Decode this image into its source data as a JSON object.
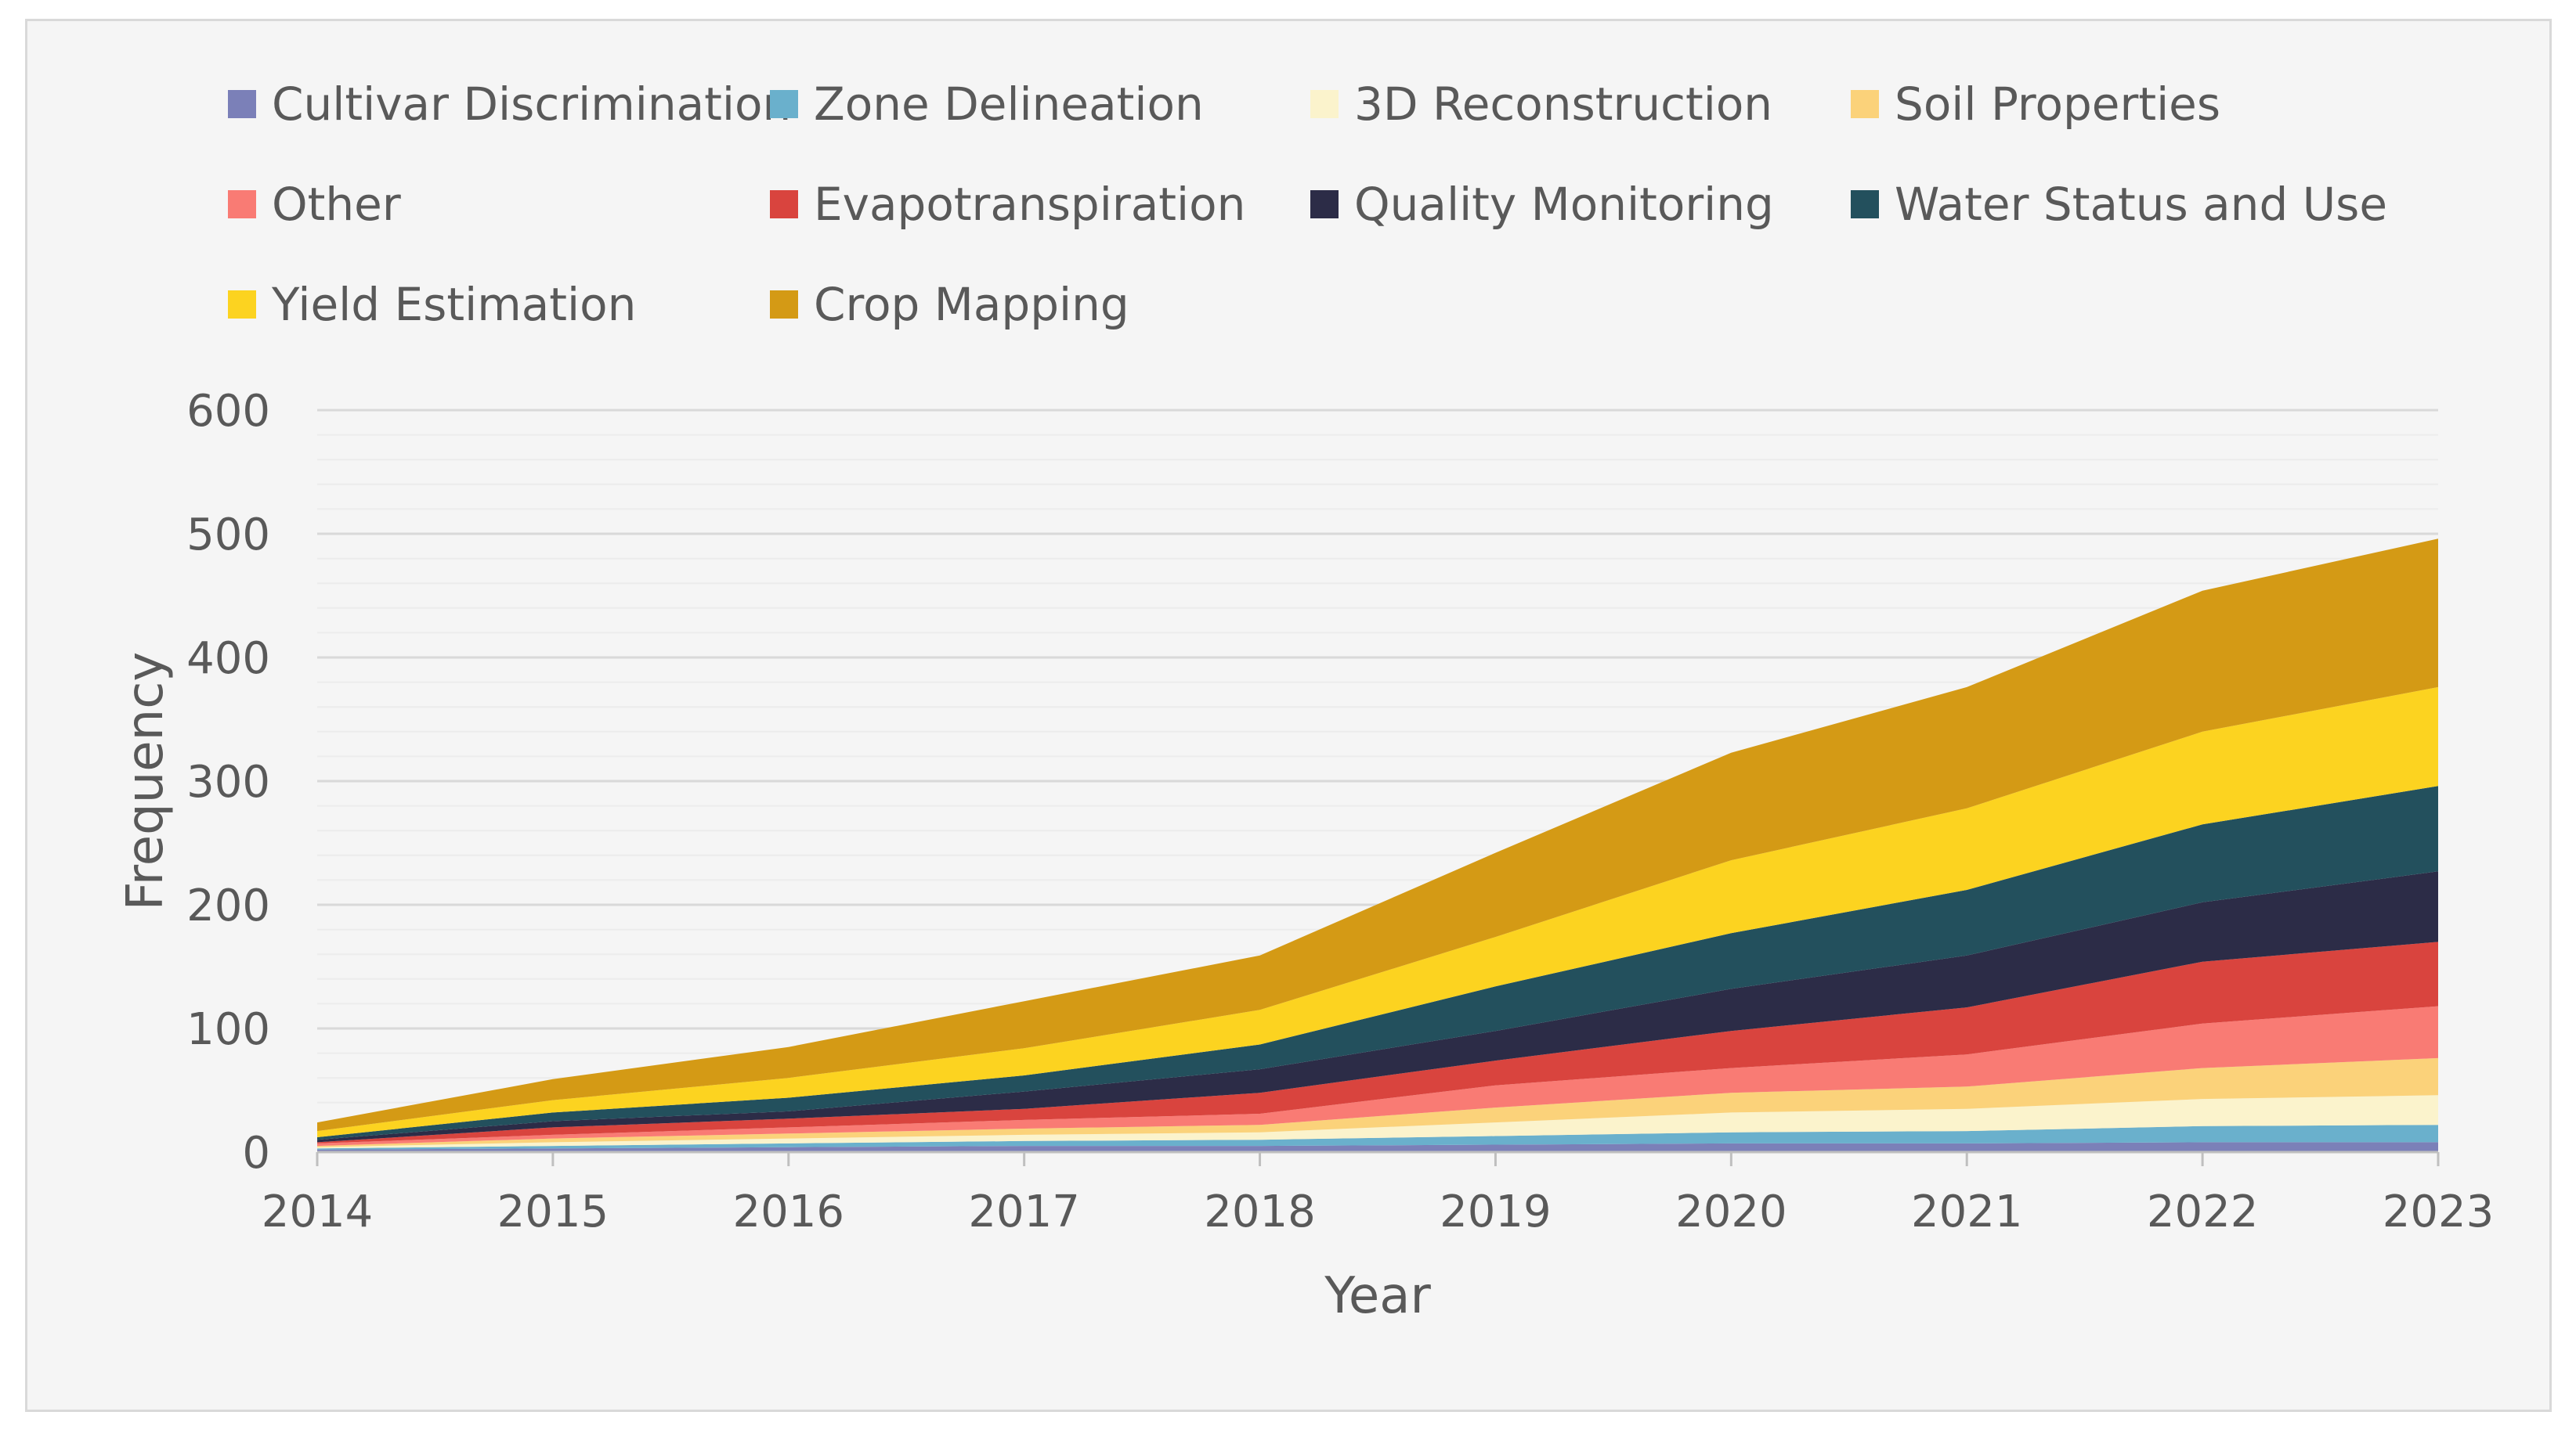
{
  "chart_data": {
    "type": "area",
    "stacked": true,
    "title": "",
    "xlabel": "Year",
    "ylabel": "Frequency",
    "ylim": [
      0,
      600
    ],
    "yticks": [
      0,
      100,
      200,
      300,
      400,
      500,
      600
    ],
    "grid": true,
    "legend_position": "top",
    "x": [
      "2014",
      "2015",
      "2016",
      "2017",
      "2018",
      "2019",
      "2020",
      "2021",
      "2022",
      "2023"
    ],
    "series": [
      {
        "name": "Cultivar Discrimination",
        "color": "#7b80b8",
        "values": [
          2,
          3,
          4,
          5,
          5,
          6,
          7,
          7,
          8,
          8
        ]
      },
      {
        "name": "Zone Delineation",
        "color": "#6ab0cc",
        "values": [
          1,
          2,
          3,
          4,
          5,
          7,
          9,
          10,
          13,
          14
        ]
      },
      {
        "name": "3D Reconstruction",
        "color": "#fbf3cc",
        "values": [
          1,
          3,
          4,
          5,
          6,
          11,
          16,
          18,
          22,
          24
        ]
      },
      {
        "name": "Soil Properties",
        "color": "#fbd27a",
        "values": [
          1,
          3,
          4,
          5,
          6,
          12,
          16,
          18,
          25,
          30
        ]
      },
      {
        "name": "Other",
        "color": "#f97b74",
        "values": [
          2,
          3,
          5,
          7,
          9,
          18,
          20,
          26,
          36,
          42
        ]
      },
      {
        "name": "Evapotranspiration",
        "color": "#d9443e",
        "values": [
          1,
          6,
          7,
          9,
          17,
          20,
          30,
          38,
          50,
          52
        ]
      },
      {
        "name": "Quality Monitoring",
        "color": "#2c2c47",
        "values": [
          2,
          5,
          6,
          14,
          19,
          24,
          34,
          42,
          48,
          57
        ]
      },
      {
        "name": "Water Status and Use",
        "color": "#23505d",
        "values": [
          2,
          7,
          11,
          13,
          20,
          36,
          45,
          53,
          63,
          69
        ]
      },
      {
        "name": "Yield Estimation",
        "color": "#fcd320",
        "values": [
          5,
          10,
          16,
          22,
          28,
          40,
          59,
          66,
          75,
          80
        ]
      },
      {
        "name": "Crop Mapping",
        "color": "#d49a15",
        "values": [
          7,
          17,
          25,
          38,
          44,
          68,
          87,
          98,
          114,
          120
        ]
      }
    ]
  }
}
